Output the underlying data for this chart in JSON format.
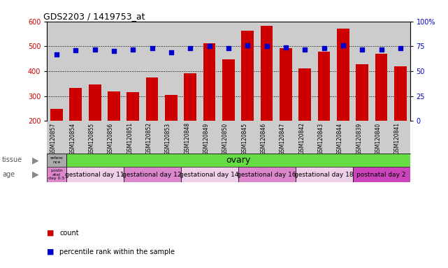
{
  "title": "GDS2203 / 1419753_at",
  "samples": [
    "GSM120857",
    "GSM120854",
    "GSM120855",
    "GSM120856",
    "GSM120851",
    "GSM120852",
    "GSM120853",
    "GSM120848",
    "GSM120849",
    "GSM120850",
    "GSM120845",
    "GSM120846",
    "GSM120847",
    "GSM120842",
    "GSM120843",
    "GSM120844",
    "GSM120839",
    "GSM120840",
    "GSM120841"
  ],
  "counts": [
    248,
    332,
    347,
    317,
    315,
    375,
    305,
    390,
    512,
    447,
    563,
    582,
    493,
    410,
    478,
    570,
    428,
    470,
    420
  ],
  "percentiles": [
    67,
    71,
    72,
    70,
    72,
    73,
    69,
    73,
    75,
    73,
    76,
    75,
    74,
    72,
    73,
    76,
    72,
    72,
    73
  ],
  "bar_color": "#cc0000",
  "dot_color": "#0000cc",
  "ylim_left": [
    200,
    600
  ],
  "ylim_right": [
    0,
    100
  ],
  "yticks_left": [
    200,
    300,
    400,
    500,
    600
  ],
  "yticks_right": [
    0,
    25,
    50,
    75,
    100
  ],
  "background_color": "#cccccc",
  "tissue_ref_color": "#aaaaaa",
  "tissue_ovary_color": "#66dd44",
  "age_groups": [
    {
      "label": "postn\natal\nday 0.5",
      "color": "#dd88cc",
      "span": 1
    },
    {
      "label": "gestational day 11",
      "color": "#f0d0e8",
      "span": 3
    },
    {
      "label": "gestational day 12",
      "color": "#dd88cc",
      "span": 3
    },
    {
      "label": "gestational day 14",
      "color": "#f0d0e8",
      "span": 3
    },
    {
      "label": "gestational day 16",
      "color": "#dd88cc",
      "span": 3
    },
    {
      "label": "gestational day 18",
      "color": "#f0d0e8",
      "span": 3
    },
    {
      "label": "postnatal day 2",
      "color": "#cc44bb",
      "span": 3
    }
  ],
  "left_axis_color": "#cc0000",
  "right_axis_color": "#0000cc",
  "grid_dotted_vals": [
    300,
    400,
    500
  ],
  "legend_items": [
    {
      "label": "count",
      "color": "#cc0000"
    },
    {
      "label": "percentile rank within the sample",
      "color": "#0000cc"
    }
  ]
}
